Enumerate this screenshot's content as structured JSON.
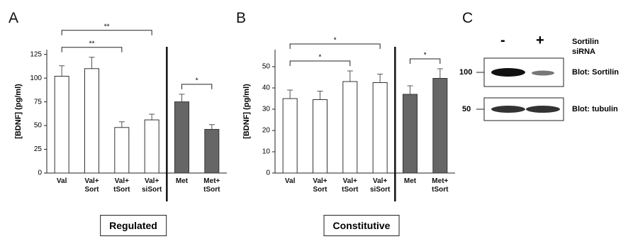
{
  "panels": [
    "A",
    "B",
    "C"
  ],
  "chart_data": [
    {
      "type": "bar",
      "ylabel": "[BDNF] (pg/ml)",
      "categories": [
        "Val",
        "Val+\nSort",
        "Val+\ntSort",
        "Val+\nsiSort",
        "Met",
        "Met+\ntSort"
      ],
      "values": [
        102,
        110,
        48,
        56,
        75,
        46
      ],
      "errors": [
        11,
        12,
        6,
        6,
        8,
        5
      ],
      "colors": [
        "#ffffff",
        "#ffffff",
        "#ffffff",
        "#ffffff",
        "#666666",
        "#666666"
      ],
      "ylim": [
        0,
        130
      ],
      "yticks": [
        0,
        25,
        50,
        75,
        100,
        125
      ],
      "annotations": [
        {
          "text": "**",
          "between": [
            0,
            2
          ]
        },
        {
          "text": "**",
          "between": [
            0,
            3
          ]
        },
        {
          "text": "*",
          "between": [
            4,
            5
          ]
        }
      ],
      "caption": "Regulated"
    },
    {
      "type": "bar",
      "ylabel": "[BDNF] (pg/ml)",
      "categories": [
        "Val",
        "Val+\nSort",
        "Val+\ntSort",
        "Val+\nsiSort",
        "Met",
        "Met+\ntSort"
      ],
      "values": [
        35,
        34.5,
        43,
        42.5,
        37,
        44.5
      ],
      "errors": [
        4,
        4,
        5,
        4,
        4,
        4.5
      ],
      "colors": [
        "#ffffff",
        "#ffffff",
        "#ffffff",
        "#ffffff",
        "#666666",
        "#666666"
      ],
      "ylim": [
        0,
        58
      ],
      "yticks": [
        0,
        10,
        20,
        30,
        40,
        50
      ],
      "annotations": [
        {
          "text": "*",
          "between": [
            0,
            2
          ]
        },
        {
          "text": "*",
          "between": [
            0,
            3
          ]
        },
        {
          "text": "*",
          "between": [
            4,
            5
          ]
        }
      ],
      "caption": "Constitutive"
    }
  ],
  "blot": {
    "lanes": [
      "-",
      "+"
    ],
    "treatment": "Sortilin\nsiRNA",
    "markers": [
      "100",
      "50"
    ],
    "rows": [
      "Blot: Sortilin",
      "Blot: tubulin"
    ]
  }
}
